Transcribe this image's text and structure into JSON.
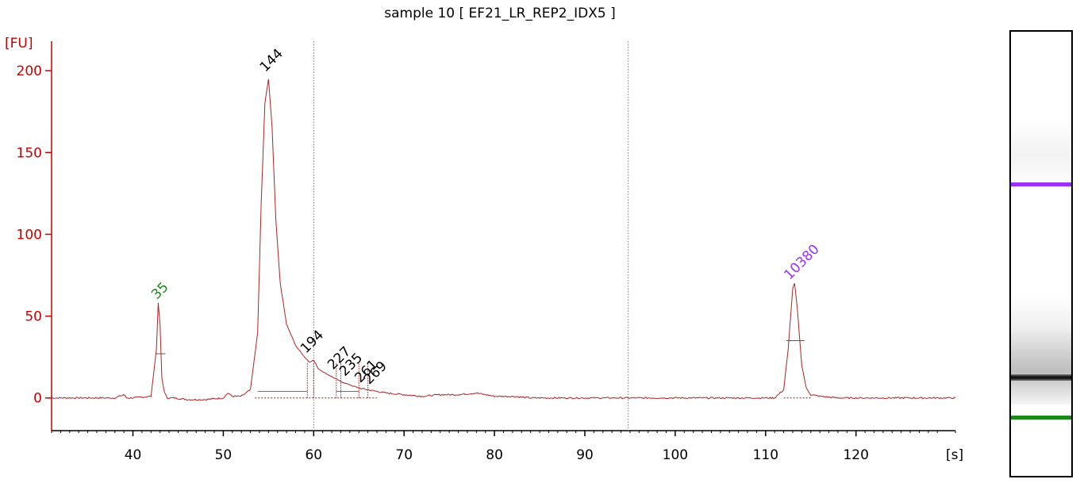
{
  "chart_data": {
    "type": "line",
    "title": "sample 10  [ EF21_LR_REP2_IDX5 ]",
    "ylabel": "[FU]",
    "xlabel": "[s]",
    "xlim": [
      31,
      131
    ],
    "ylim": [
      -20,
      218
    ],
    "x_ticks": [
      40,
      50,
      60,
      70,
      80,
      90,
      100,
      110,
      120
    ],
    "y_ticks": [
      0,
      50,
      100,
      150,
      200
    ],
    "grid": false,
    "vertical_markers": [
      60,
      94.8
    ],
    "series": [
      {
        "color": "#b22222",
        "x": [
          31,
          34,
          36,
          38,
          39,
          39.3,
          40,
          42,
          42.6,
          42.8,
          43,
          43.2,
          43.5,
          43.8,
          44.5,
          46,
          48,
          50,
          50.5,
          51,
          52,
          53,
          53.8,
          54.2,
          54.6,
          55,
          55.4,
          55.8,
          56.3,
          57,
          58,
          59,
          59.5,
          60,
          60.5,
          61,
          62,
          63,
          64,
          65,
          66,
          67,
          68,
          70,
          72,
          74,
          76,
          78,
          80,
          82,
          84,
          88,
          92,
          96,
          100,
          104,
          108,
          111,
          112,
          112.5,
          113,
          113.2,
          113.5,
          114,
          114.5,
          115,
          116,
          118,
          122,
          126,
          131
        ],
        "y": [
          0,
          0,
          0,
          0,
          2,
          0,
          0,
          1,
          30,
          58,
          45,
          12,
          3,
          0,
          0,
          -1,
          -1,
          0,
          3,
          1,
          1,
          5,
          40,
          120,
          180,
          195,
          165,
          110,
          70,
          45,
          32,
          25,
          22,
          23,
          18,
          16,
          13,
          10,
          8,
          6,
          5,
          4,
          3,
          2,
          1,
          2,
          2,
          3,
          1,
          1,
          0,
          0,
          0,
          0,
          0,
          0,
          0,
          0,
          5,
          30,
          67,
          70,
          55,
          20,
          6,
          2,
          1,
          0,
          0,
          0,
          0
        ]
      }
    ],
    "peaks": [
      {
        "label": "35",
        "x": 43,
        "y": 58,
        "color": "#1a8a1a"
      },
      {
        "label": "144",
        "x": 55,
        "y": 197,
        "color": "#000000"
      },
      {
        "label": "194",
        "x": 59.5,
        "y": 25,
        "color": "#000000"
      },
      {
        "label": "227",
        "x": 62.5,
        "y": 15,
        "color": "#000000"
      },
      {
        "label": "235",
        "x": 63.8,
        "y": 11,
        "color": "#000000"
      },
      {
        "label": "261",
        "x": 65.5,
        "y": 7,
        "color": "#000000"
      },
      {
        "label": "269",
        "x": 66.5,
        "y": 6,
        "color": "#000000"
      },
      {
        "label": "10380",
        "x": 113,
        "y": 70,
        "color": "#9b30ff"
      }
    ]
  },
  "gel": {
    "upper_marker_color": "#9b30ff",
    "lower_marker_color": "#1a8a1a",
    "main_band_color": "#111111"
  }
}
